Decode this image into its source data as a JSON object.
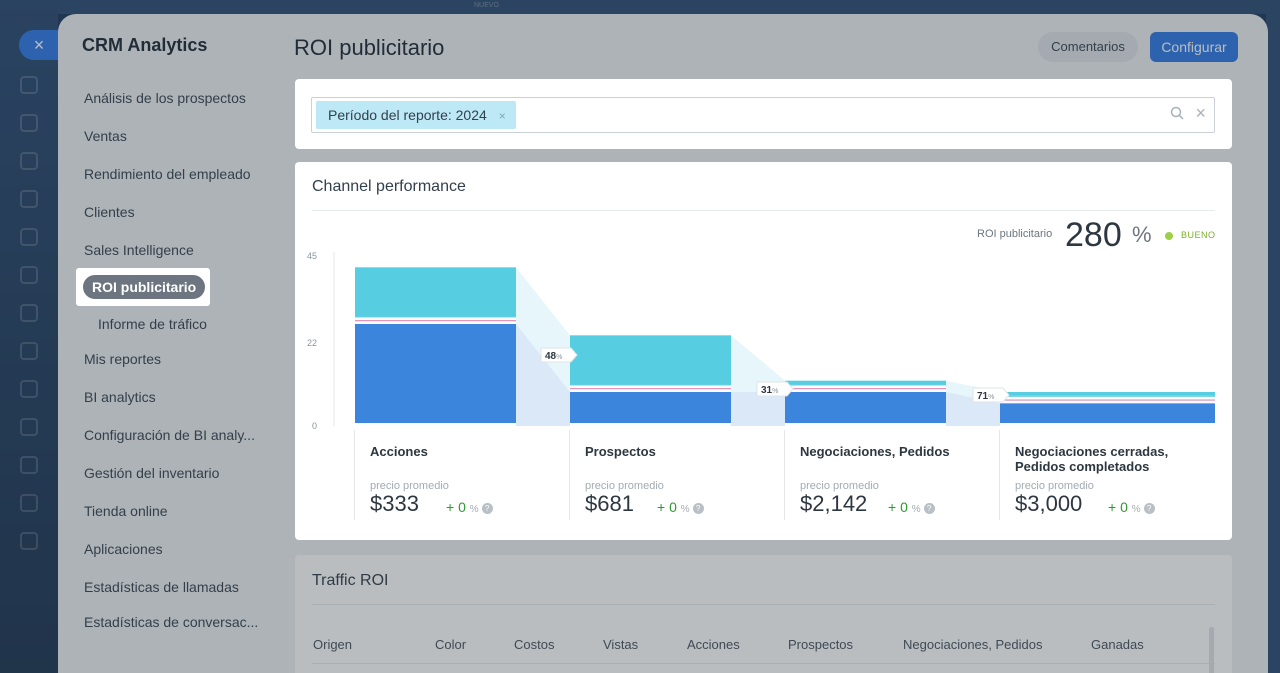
{
  "background": {
    "close_label": "×",
    "top_hint": "NUEVO"
  },
  "sidebar": {
    "title": "CRM Analytics",
    "items": [
      {
        "label": "Análisis de los prospectos"
      },
      {
        "label": "Ventas"
      },
      {
        "label": "Rendimiento del empleado"
      },
      {
        "label": "Clientes"
      },
      {
        "label": "Sales Intelligence"
      },
      {
        "label": "ROI publicitario",
        "active": true
      },
      {
        "label": "Informe de tráfico",
        "sub": true
      },
      {
        "label": "Mis reportes"
      },
      {
        "label": "BI analytics"
      },
      {
        "label": "Configuración de BI analy..."
      },
      {
        "label": "Gestión del inventario"
      },
      {
        "label": "Tienda online"
      },
      {
        "label": "Aplicaciones"
      },
      {
        "label": "Estadísticas de llamadas"
      },
      {
        "label": "Estadísticas de conversac..."
      }
    ]
  },
  "header": {
    "title": "ROI publicitario",
    "comments_label": "Comentarios",
    "configure_label": "Configurar"
  },
  "filter": {
    "chip_label": "Período del reporte: 2024",
    "chip_remove": "×",
    "clear_label": "×"
  },
  "channel_performance": {
    "title": "Channel performance",
    "roi_label": "ROI publicitario",
    "roi_value": "280",
    "roi_unit": "%",
    "roi_status": "BUENO",
    "stages": [
      {
        "name": "Acciones",
        "price_label": "precio promedio",
        "price": "$333",
        "change": "+ 0",
        "change_unit": "%"
      },
      {
        "name": "Prospectos",
        "price_label": "precio promedio",
        "price": "$681",
        "change": "+ 0",
        "change_unit": "%"
      },
      {
        "name": "Negociaciones, Pedidos",
        "price_label": "precio promedio",
        "price": "$2,142",
        "change": "+ 0",
        "change_unit": "%"
      },
      {
        "name": "Negociaciones cerradas, Pedidos completados",
        "price_label": "precio promedio",
        "price": "$3,000",
        "change": "+ 0",
        "change_unit": "%"
      }
    ]
  },
  "chart_data": {
    "type": "bar",
    "title": "",
    "xlabel": "",
    "ylabel": "",
    "y_ticks": [
      "45",
      "22",
      "0"
    ],
    "ylim": [
      0,
      45
    ],
    "categories": [
      "Acciones",
      "Prospectos",
      "Negociaciones, Pedidos",
      "Negociaciones cerradas, Pedidos completados"
    ],
    "series": [
      {
        "values": [
          27,
          9,
          9,
          6
        ],
        "color": "#3b86dc"
      },
      {
        "values": [
          1,
          1,
          1,
          1
        ],
        "color": "#d77aa6"
      },
      {
        "values": [
          1,
          1,
          1,
          1
        ],
        "color": "#56cde0"
      },
      {
        "values": [
          13,
          13,
          1,
          1
        ],
        "color": "#56cde0"
      }
    ],
    "conversions": [
      "48",
      "31",
      "71"
    ],
    "conversion_unit": "%",
    "colors": {
      "primary": "#3b86dc",
      "secondary": "#d77aa6",
      "accent": "#56cde0",
      "funnel": "#dbe8f7"
    }
  },
  "traffic_roi": {
    "title": "Traffic ROI",
    "columns": [
      "Origen",
      "Color",
      "Costos",
      "Vistas",
      "Acciones",
      "Prospectos",
      "Negociaciones, Pedidos",
      "Ganadas"
    ]
  }
}
